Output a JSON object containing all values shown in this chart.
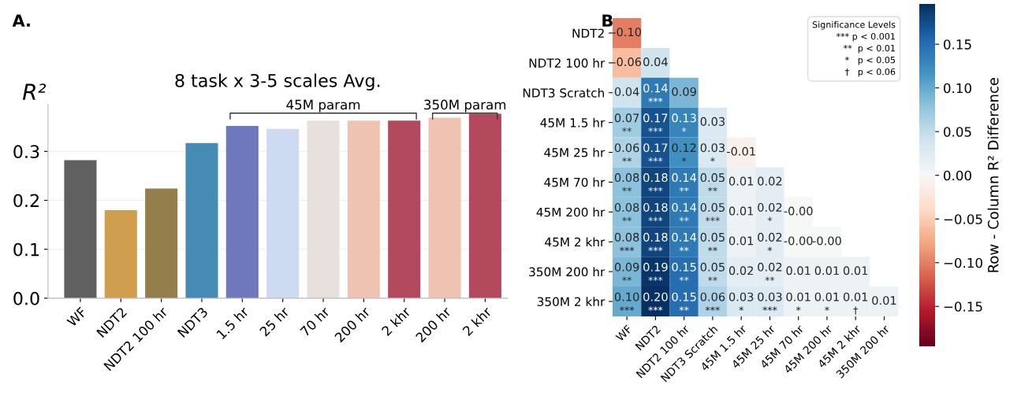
{
  "chart_data": [
    {
      "type": "bar",
      "title": "8 task x 3-5 scales Avg.",
      "ylabel": "R²",
      "categories": [
        "WF",
        "NDT2",
        "NDT2 100 hr",
        "NDT3",
        "1.5 hr",
        "25 hr",
        "70 hr",
        "200 hr",
        "2 khr",
        "200 hr",
        "2 khr"
      ],
      "values": [
        0.282,
        0.18,
        0.224,
        0.317,
        0.352,
        0.346,
        0.363,
        0.363,
        0.363,
        0.369,
        0.377
      ],
      "colors": [
        "#606060",
        "#cf9f4f",
        "#947e4c",
        "#458bb3",
        "#6f77bd",
        "#cedaf2",
        "#e8e0dc",
        "#eec3b2",
        "#b2495d",
        "#eec3b2",
        "#b2495d"
      ],
      "ylim": [
        0,
        0.396
      ],
      "yticks": [
        {
          "value": 0.0,
          "label": "0.0"
        },
        0.1,
        0.2,
        0.3
      ],
      "grid": "y",
      "annotations": [
        "A.",
        "45M param",
        "350M param"
      ]
    },
    {
      "type": "heatmap",
      "clabel": "Row - Column R² Difference",
      "legend_title": "Significance Levels",
      "categories": [
        "WF",
        "NDT2",
        "NDT2 100 hr",
        "NDT3 Scratch",
        "45M 1.5 hr",
        "45M 25 hr",
        "45M 70 hr",
        "45M 200 hr",
        "45M 2 khr",
        "350M 200 hr"
      ],
      "y_categories": [
        "NDT2",
        "NDT2 100 hr",
        "NDT3 Scratch",
        "45M 1.5 hr",
        "45M 25 hr",
        "45M 70 hr",
        "45M 200 hr",
        "45M 2 khr",
        "350M 200 hr",
        "350M 2 khr"
      ],
      "cells": [
        [
          -0.1,
          null,
          null,
          null,
          null,
          null,
          null,
          null,
          null,
          null
        ],
        [
          -0.06,
          0.04,
          null,
          null,
          null,
          null,
          null,
          null,
          null,
          null
        ],
        [
          0.04,
          0.14,
          0.09,
          null,
          null,
          null,
          null,
          null,
          null,
          null
        ],
        [
          0.07,
          0.17,
          0.13,
          0.03,
          null,
          null,
          null,
          null,
          null,
          null
        ],
        [
          0.06,
          0.17,
          0.12,
          0.03,
          -0.01,
          null,
          null,
          null,
          null,
          null
        ],
        [
          0.08,
          0.18,
          0.14,
          0.05,
          0.01,
          0.02,
          null,
          null,
          null,
          null
        ],
        [
          0.08,
          0.18,
          0.14,
          0.05,
          0.01,
          0.02,
          -0.0,
          null,
          null,
          null
        ],
        [
          0.08,
          0.18,
          0.14,
          0.05,
          0.01,
          0.02,
          -0.0,
          -0.0,
          null,
          null
        ],
        [
          0.09,
          0.19,
          0.15,
          0.05,
          0.02,
          0.02,
          0.01,
          0.01,
          0.01,
          null
        ],
        [
          0.1,
          0.2,
          0.15,
          0.06,
          0.03,
          0.03,
          0.01,
          0.01,
          0.01,
          0.01
        ]
      ],
      "cell_labels": [
        [
          "-0.10",
          null,
          null,
          null,
          null,
          null,
          null,
          null,
          null,
          null
        ],
        [
          "-0.06",
          "0.04",
          null,
          null,
          null,
          null,
          null,
          null,
          null,
          null
        ],
        [
          "0.04",
          "0.14\n***",
          "0.09",
          null,
          null,
          null,
          null,
          null,
          null,
          null
        ],
        [
          "0.07\n**",
          "0.17\n***",
          "0.13\n*",
          "0.03",
          null,
          null,
          null,
          null,
          null,
          null
        ],
        [
          "0.06\n**",
          "0.17\n***",
          "0.12\n*",
          "0.03\n*",
          "-0.01",
          null,
          null,
          null,
          null,
          null
        ],
        [
          "0.08\n**",
          "0.18\n***",
          "0.14\n**",
          "0.05\n**",
          "0.01",
          "0.02",
          null,
          null,
          null,
          null
        ],
        [
          "0.08\n**",
          "0.18\n***",
          "0.14\n**",
          "0.05\n***",
          "0.01",
          "0.02\n*",
          "-0.00",
          null,
          null,
          null
        ],
        [
          "0.08\n***",
          "0.18\n***",
          "0.14\n**",
          "0.05\n**",
          "0.01",
          "0.02\n*",
          "-0.00",
          "-0.00",
          null,
          null
        ],
        [
          "0.09\n**",
          "0.19\n***",
          "0.15\n**",
          "0.05\n**",
          "0.02",
          "0.02\n**",
          "0.01",
          "0.01",
          "0.01",
          null
        ],
        [
          "0.10\n***",
          "0.20\n***",
          "0.15\n**",
          "0.06\n***",
          "0.03\n*",
          "0.03\n***",
          "0.01\n*",
          "0.01\n*",
          "0.01\n†",
          "0.01"
        ]
      ],
      "clim": [
        -0.196,
        0.196
      ],
      "cticks": [
        {
          "value": -0.15,
          "label": "−0.15"
        },
        {
          "value": -0.1,
          "label": "−0.10"
        },
        {
          "value": -0.05,
          "label": "−0.05"
        },
        {
          "value": 0.0,
          "label": "0.00"
        },
        {
          "value": 0.05,
          "label": "0.05"
        },
        {
          "value": 0.1,
          "label": "0.10"
        },
        {
          "value": 0.15,
          "label": "0.15"
        }
      ],
      "annotations": [
        "B",
        "*** p < 0.001",
        "**  p < 0.01",
        "*   p < 0.05",
        "†   p < 0.06"
      ]
    }
  ]
}
